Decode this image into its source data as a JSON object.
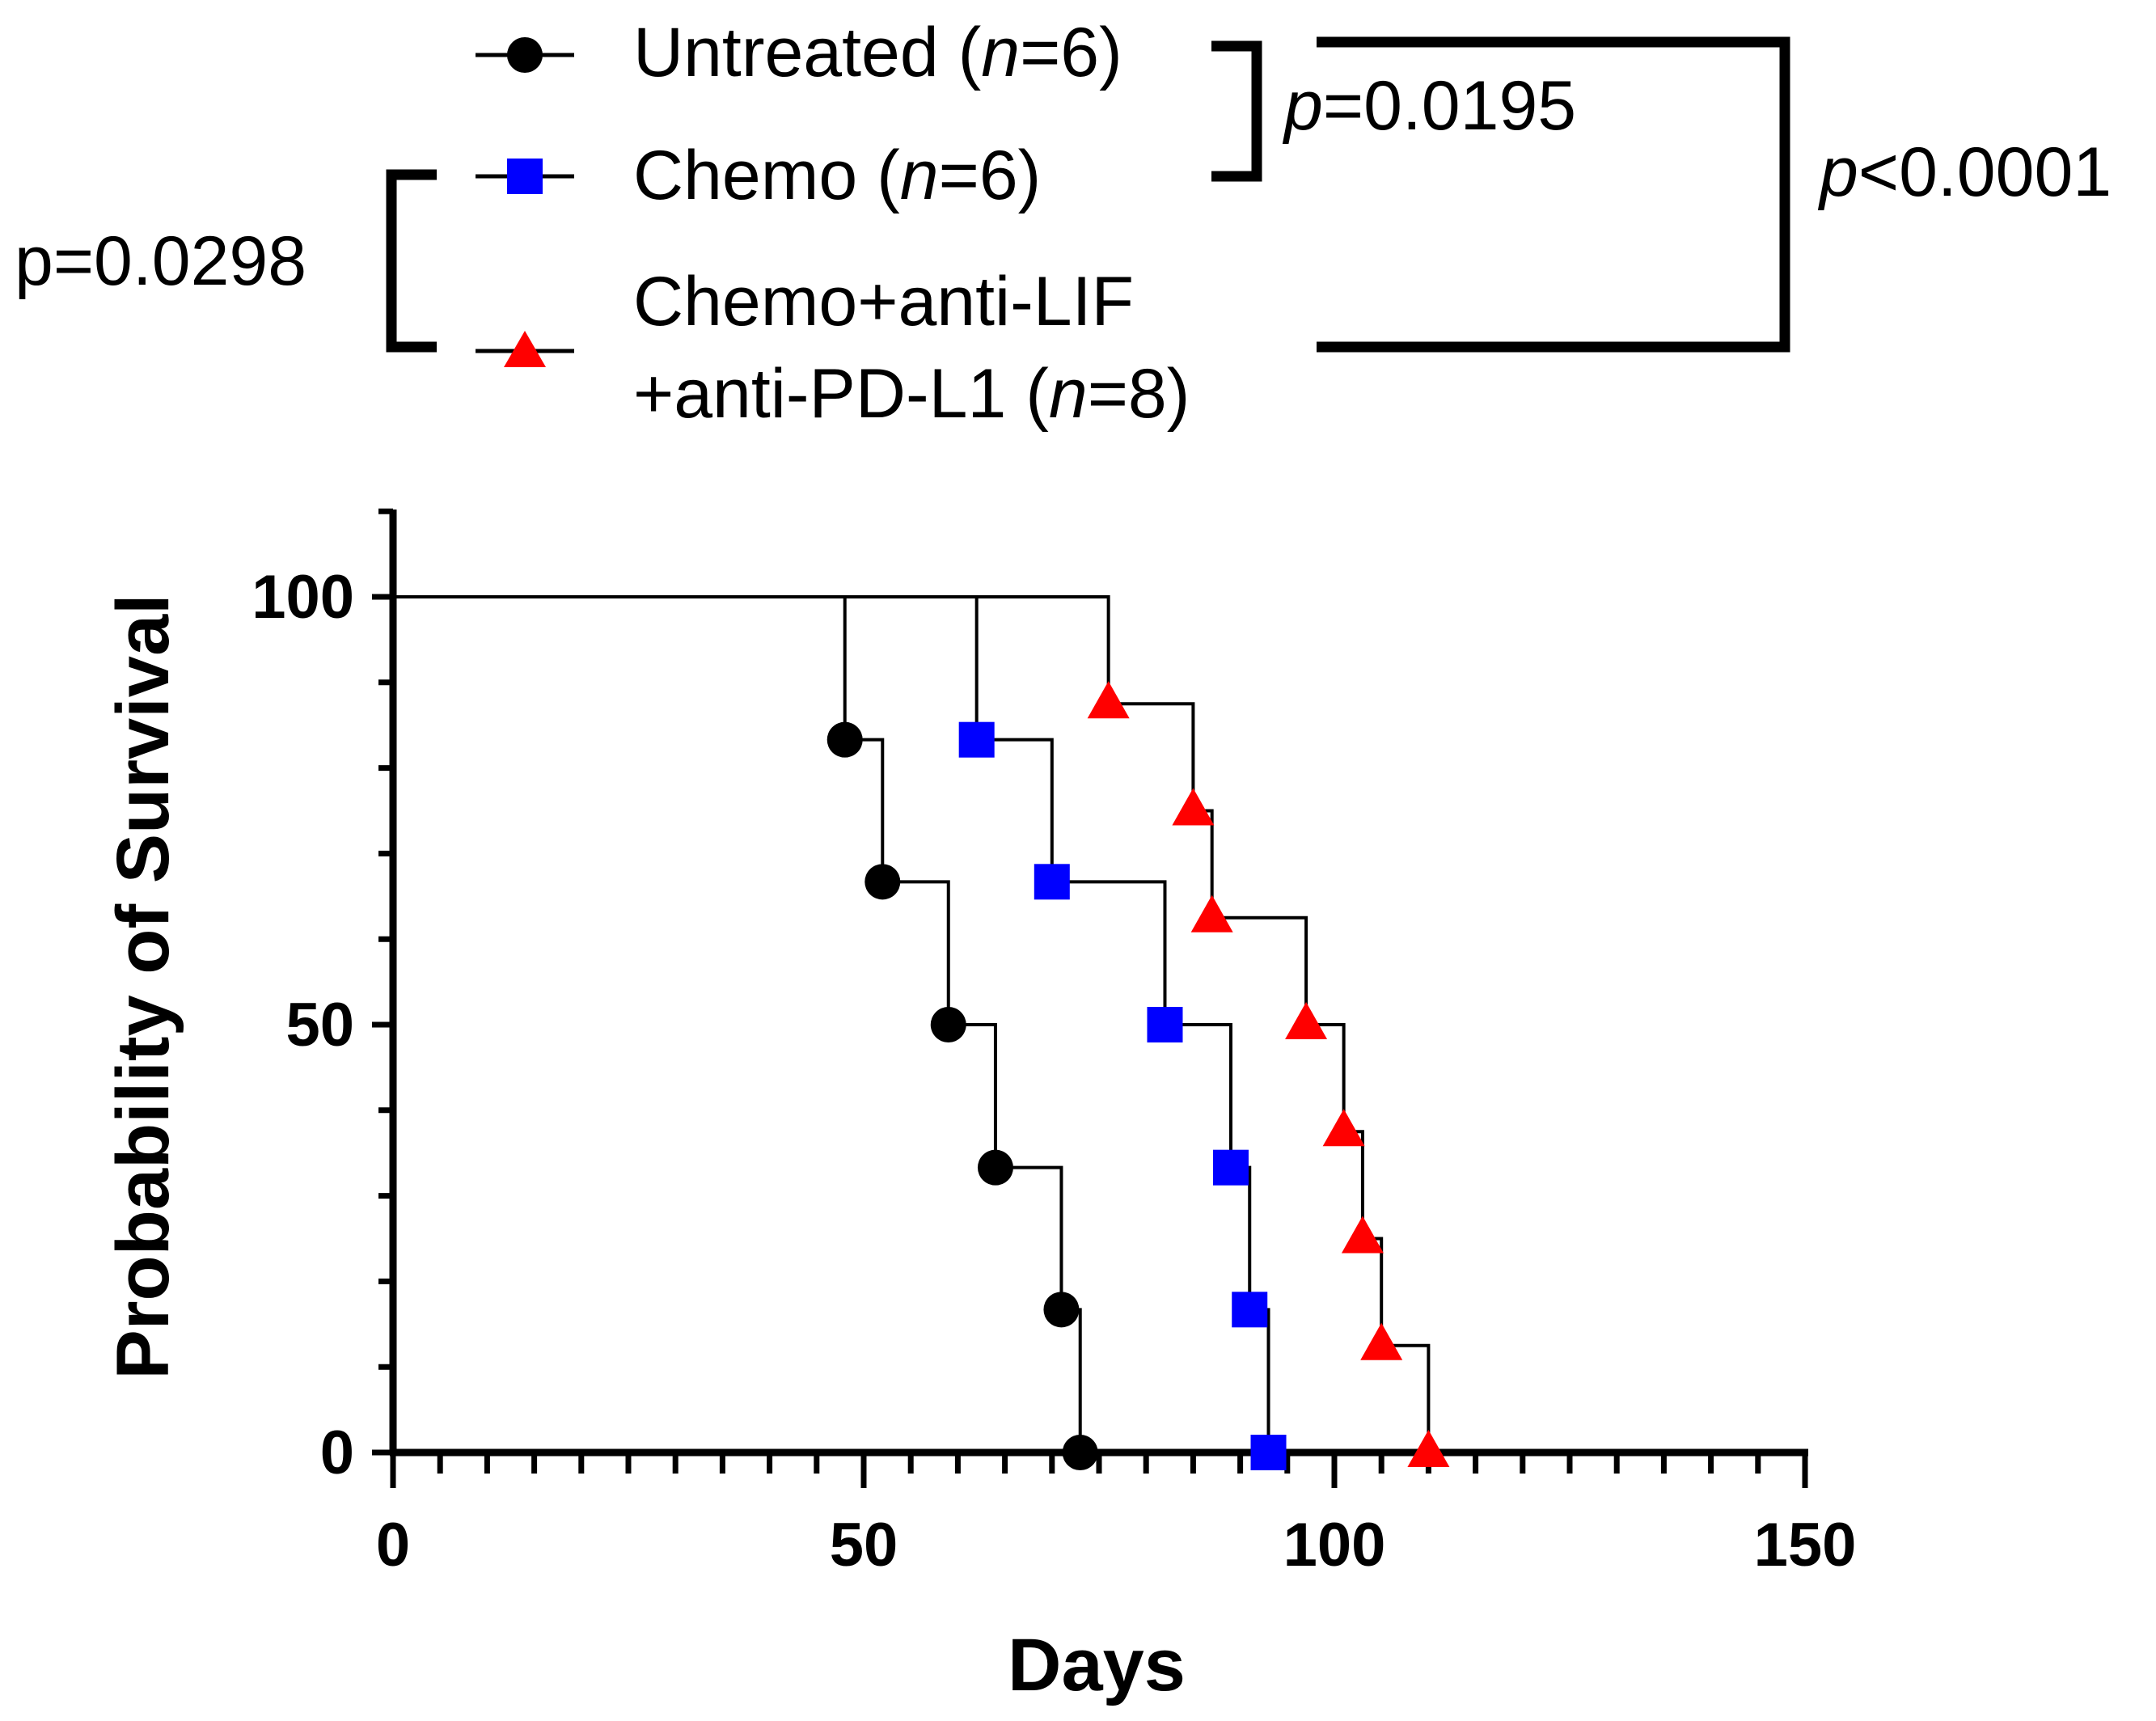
{
  "chart_data": {
    "type": "line",
    "subtype": "kaplan-meier",
    "xlabel": "Days",
    "ylabel": "Probability of Survival",
    "xlim": [
      0,
      150
    ],
    "ylim": [
      0,
      110
    ],
    "x_ticks": [
      0,
      50,
      100,
      150
    ],
    "y_ticks": [
      0,
      50,
      100
    ],
    "x_minor_step": 5,
    "y_minor_step": 10,
    "colors": {
      "untreated": "#000000",
      "chemo": "#0000ff",
      "triple": "#ff0000",
      "axis": "#000000"
    },
    "series": [
      {
        "key": "untreated",
        "name": "Untreated",
        "n_label": "(n=6)",
        "n_prefix": "(",
        "n_var": "n",
        "n_rest": "=6)",
        "marker": "circle",
        "color": "#000000",
        "start": 100,
        "events": [
          {
            "x": 48,
            "y": 83.3
          },
          {
            "x": 52,
            "y": 66.7
          },
          {
            "x": 59,
            "y": 50
          },
          {
            "x": 64,
            "y": 33.3
          },
          {
            "x": 71,
            "y": 16.7
          },
          {
            "x": 73,
            "y": 0
          }
        ]
      },
      {
        "key": "chemo",
        "name": "Chemo",
        "n_label": "(n=6)",
        "n_prefix": "(",
        "n_var": "n",
        "n_rest": "=6)",
        "marker": "square",
        "color": "#0000ff",
        "start": 100,
        "events": [
          {
            "x": 62,
            "y": 83.3
          },
          {
            "x": 70,
            "y": 66.7
          },
          {
            "x": 82,
            "y": 50
          },
          {
            "x": 89,
            "y": 33.3
          },
          {
            "x": 91,
            "y": 16.7
          },
          {
            "x": 93,
            "y": 0
          }
        ]
      },
      {
        "key": "triple",
        "name": "Chemo+anti-LIF",
        "name_line2": "+anti-PD-L1",
        "n_label": "(n=8)",
        "n_prefix": "(",
        "n_var": "n",
        "n_rest": "=8)",
        "marker": "triangle",
        "color": "#ff0000",
        "start": 100,
        "events": [
          {
            "x": 76,
            "y": 87.5
          },
          {
            "x": 85,
            "y": 75
          },
          {
            "x": 87,
            "y": 62.5
          },
          {
            "x": 97,
            "y": 50
          },
          {
            "x": 101,
            "y": 37.5
          },
          {
            "x": 103,
            "y": 25
          },
          {
            "x": 105,
            "y": 12.5
          },
          {
            "x": 110,
            "y": 0
          }
        ]
      }
    ],
    "comparisons": [
      {
        "groups": [
          "Untreated",
          "Chemo"
        ],
        "label": "p=0.0195",
        "p_var": "p",
        "p_rest": "=0.0195"
      },
      {
        "groups": [
          "Untreated",
          "Chemo+anti-LIF +anti-PD-L1"
        ],
        "label": "p<0.0001",
        "p_var": "p",
        "p_rest": "<0.0001"
      },
      {
        "groups": [
          "Chemo",
          "Chemo+anti-LIF +anti-PD-L1"
        ],
        "label": "p=0.0298",
        "p_text": "p=0.0298"
      }
    ]
  }
}
